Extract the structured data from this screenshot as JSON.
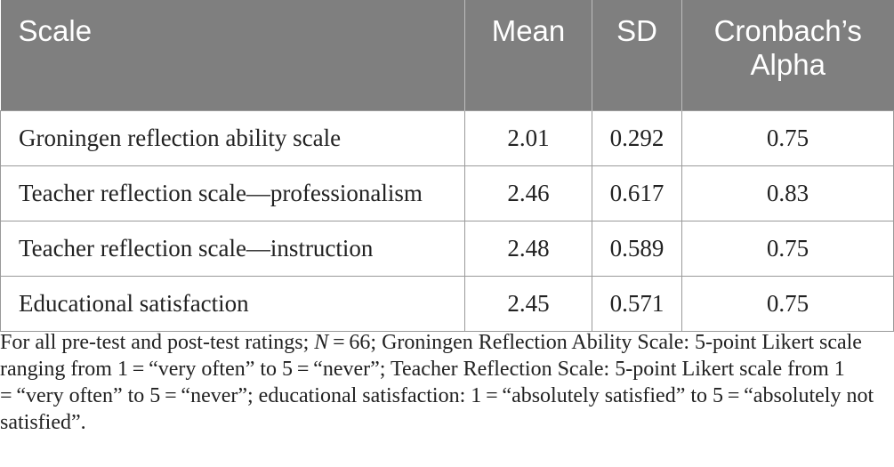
{
  "table": {
    "headers": [
      "Scale",
      "Mean",
      "SD",
      "Cronbach’s Alpha"
    ],
    "rows": [
      [
        "Groningen reflection ability scale",
        "2.01",
        "0.292",
        "0.75"
      ],
      [
        "Teacher reflection scale—professionalism",
        "2.46",
        "0.617",
        "0.83"
      ],
      [
        "Teacher reflection scale—instruction",
        "2.48",
        "0.589",
        "0.75"
      ],
      [
        "Educational satisfaction",
        "2.45",
        "0.571",
        "0.75"
      ]
    ]
  },
  "note": {
    "pre": "For all pre-test and post-test ratings; ",
    "n_symbol": "N",
    "post": " = 66; Groningen Reflection Ability Scale: 5-point Likert scale ranging from 1 = “very often” to 5 = “never”; Teacher Reflection Scale: 5-point Likert scale from 1 = “very often” to 5 = “never”; educational satisfaction: 1 = “absolutely satisfied” to 5 = “absolutely not satisfied”."
  }
}
